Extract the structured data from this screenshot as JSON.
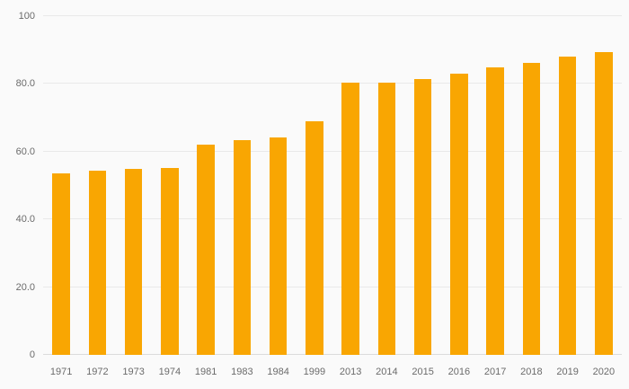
{
  "chart_data": {
    "type": "bar",
    "categories": [
      "1971",
      "1972",
      "1973",
      "1974",
      "1981",
      "1983",
      "1984",
      "1999",
      "2013",
      "2014",
      "2015",
      "2016",
      "2017",
      "2018",
      "2019",
      "2020"
    ],
    "values": [
      53.5,
      54.3,
      54.8,
      55.3,
      62.0,
      63.3,
      64.3,
      69.0,
      80.5,
      80.5,
      81.5,
      83.0,
      84.8,
      86.3,
      88.0,
      89.5
    ],
    "title": "",
    "xlabel": "",
    "ylabel": "",
    "ylim": [
      0,
      100
    ],
    "yticks": [
      {
        "value": 0,
        "label": "0"
      },
      {
        "value": 20,
        "label": "20.0"
      },
      {
        "value": 40,
        "label": "40.0"
      },
      {
        "value": 60,
        "label": "60.0"
      },
      {
        "value": 80,
        "label": "80.0"
      },
      {
        "value": 100,
        "label": "100"
      }
    ],
    "grid": true,
    "legend": "none",
    "colors": {
      "bar": "#f9a602",
      "background": "#fafafa",
      "gridline": "#e9e9e9",
      "axis_baseline": "#dcdcdc",
      "tick_text": "#6b6b6b"
    }
  }
}
